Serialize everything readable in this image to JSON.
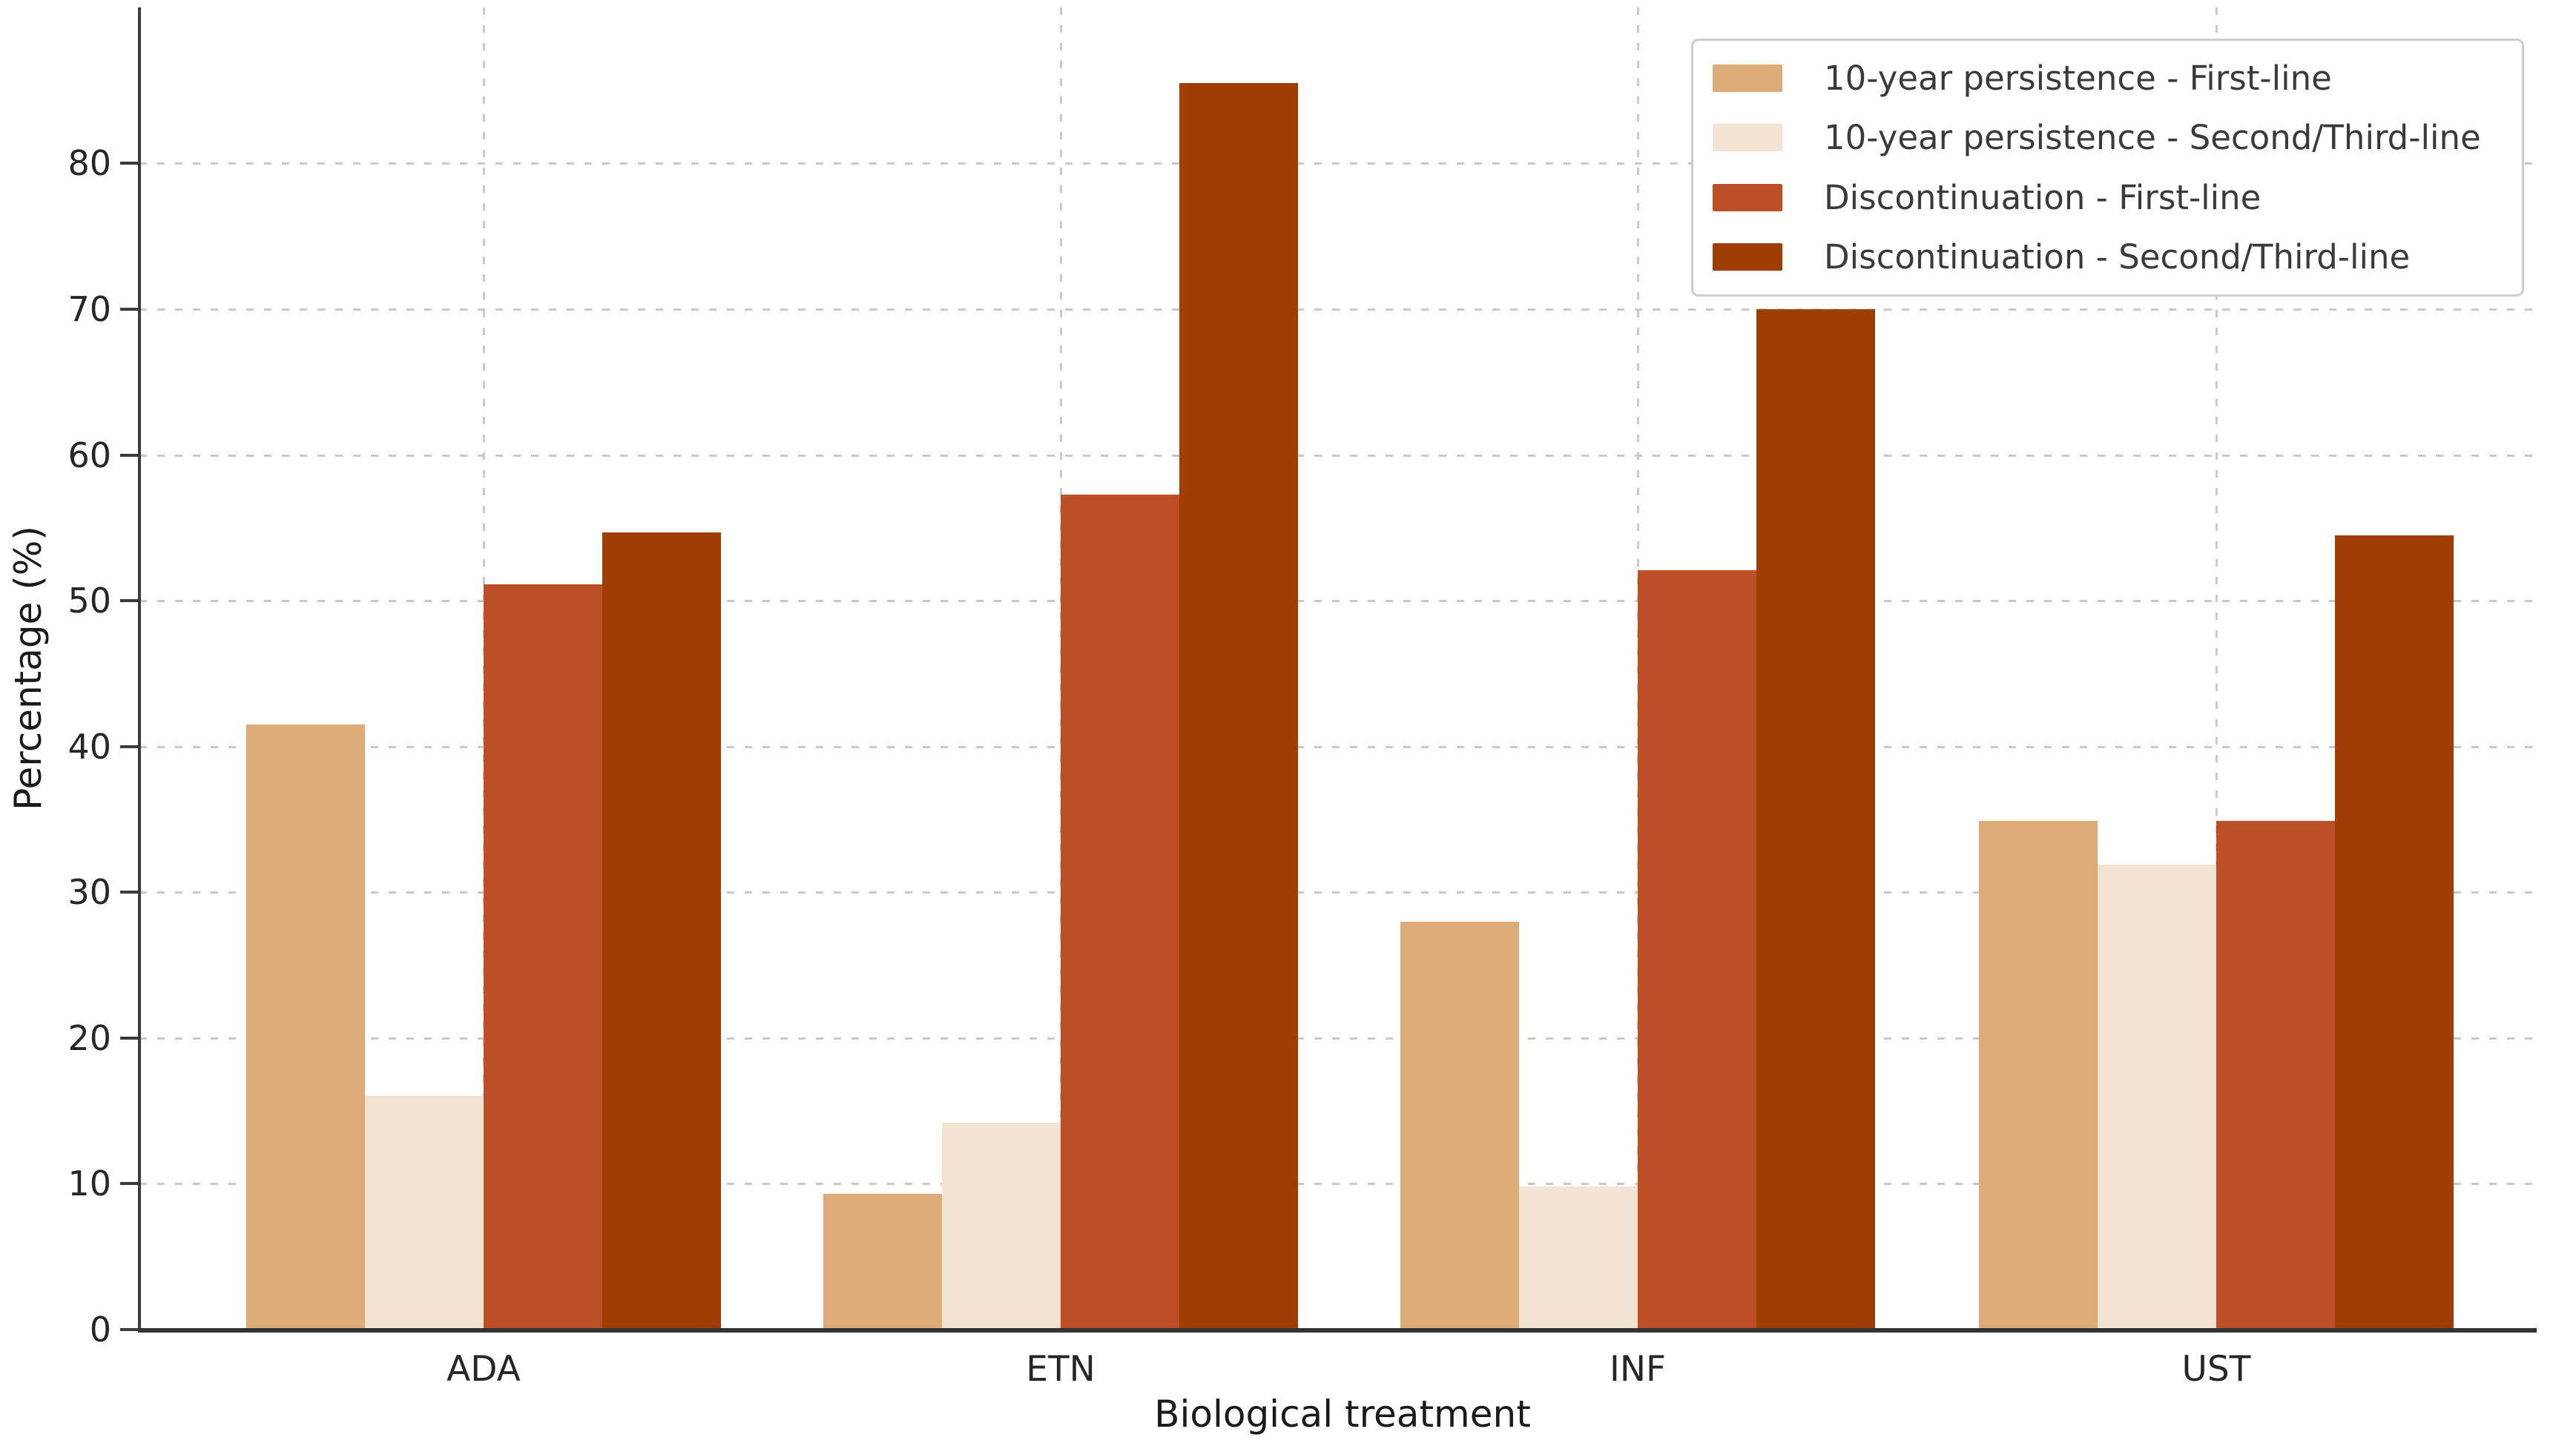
{
  "chart_data": {
    "type": "bar",
    "title": "",
    "xlabel": "Biological treatment",
    "ylabel": "Percentage (%)",
    "categories": [
      "ADA",
      "ETN",
      "INF",
      "UST"
    ],
    "series": [
      {
        "name": "10-year persistence - First-line",
        "color": "#dcab78",
        "values": [
          41.5,
          9.3,
          28.0,
          34.9
        ]
      },
      {
        "name": "10-year persistence - Second/Third-line",
        "color": "#f2e3d3",
        "values": [
          16.0,
          14.2,
          9.8,
          31.9
        ]
      },
      {
        "name": "Discontinuation - First-line",
        "color": "#bc4f26",
        "values": [
          51.1,
          57.3,
          52.1,
          34.9
        ]
      },
      {
        "name": "Discontinuation - Second/Third-line",
        "color": "#9e3d04",
        "values": [
          54.7,
          85.5,
          70.0,
          54.5
        ]
      }
    ],
    "ylim": [
      0,
      90.7
    ],
    "yticks": [
      0,
      10,
      20,
      30,
      40,
      50,
      60,
      70,
      80
    ],
    "grid": true,
    "grid_style": "dotted",
    "legend_position": "upper right"
  },
  "colors": {
    "grid": "#c9c9c9",
    "spine": "#3b3b3b",
    "text": "#262626",
    "background": "#ffffff",
    "legend_border": "#cccccc"
  }
}
